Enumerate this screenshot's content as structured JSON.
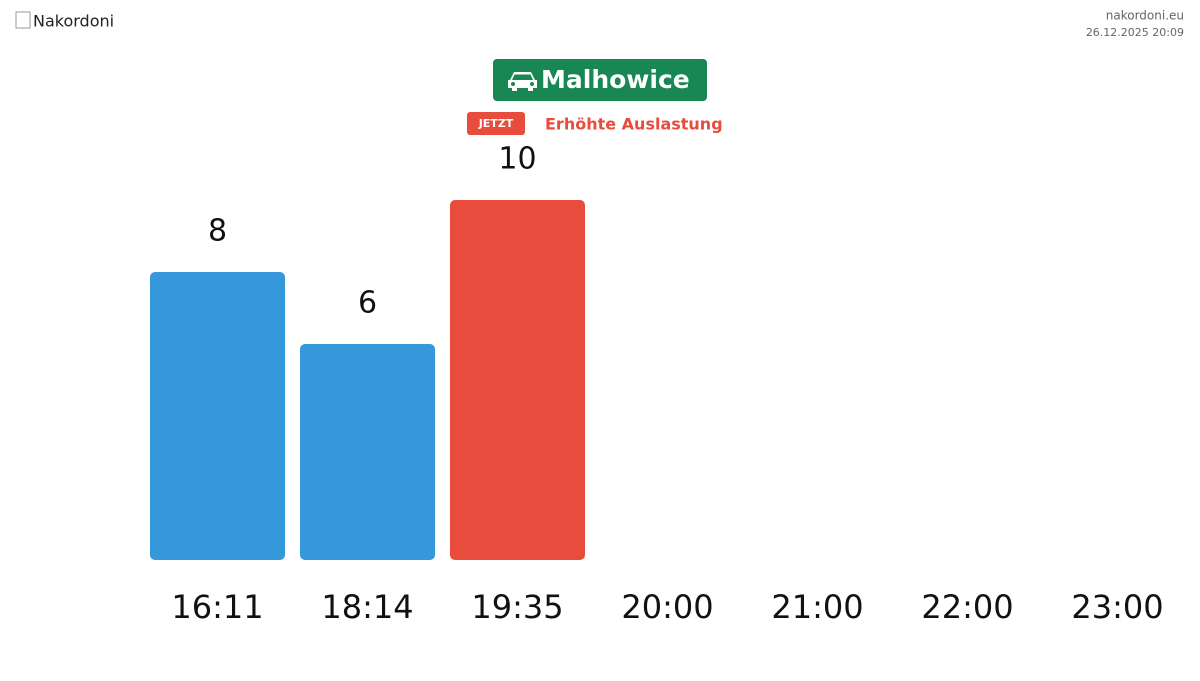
{
  "header": {
    "logo_alt": "Nakordoni",
    "site": "nakordoni.eu",
    "timestamp": "26.12.2025 20:09"
  },
  "status": {
    "badge": "JETZT",
    "text": "Erhöhte Auslastung"
  },
  "chart_data": {
    "type": "bar",
    "title": "Malhowice",
    "categories": [
      "16:11",
      "18:14",
      "19:35",
      "20:00",
      "21:00",
      "22:00",
      "23:00"
    ],
    "values": [
      8,
      6,
      10,
      null,
      null,
      null,
      null
    ],
    "colors": [
      "#3498db",
      "#3498db",
      "#e74c3c",
      null,
      null,
      null,
      null
    ]
  }
}
